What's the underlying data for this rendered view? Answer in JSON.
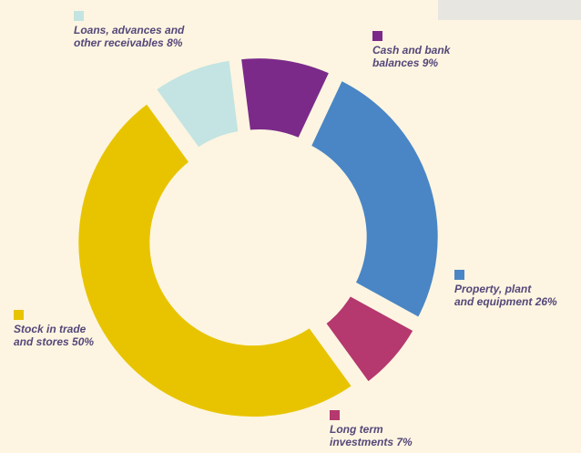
{
  "chart_data": {
    "type": "donut",
    "categories": [
      "Loans, advances and\nother receivables",
      "Cash and bank\nbalances",
      "Property, plant\nand equipment",
      "Long term\ninvestments",
      "Stock in trade\nand stores"
    ],
    "values": [
      8,
      9,
      26,
      7,
      50
    ],
    "value_labels": [
      "8%",
      "9%",
      "26%",
      "7%",
      "50%"
    ],
    "colors": [
      "#c3e4e2",
      "#7b2a8a",
      "#4a86c5",
      "#b5386f",
      "#e8c400"
    ]
  }
}
